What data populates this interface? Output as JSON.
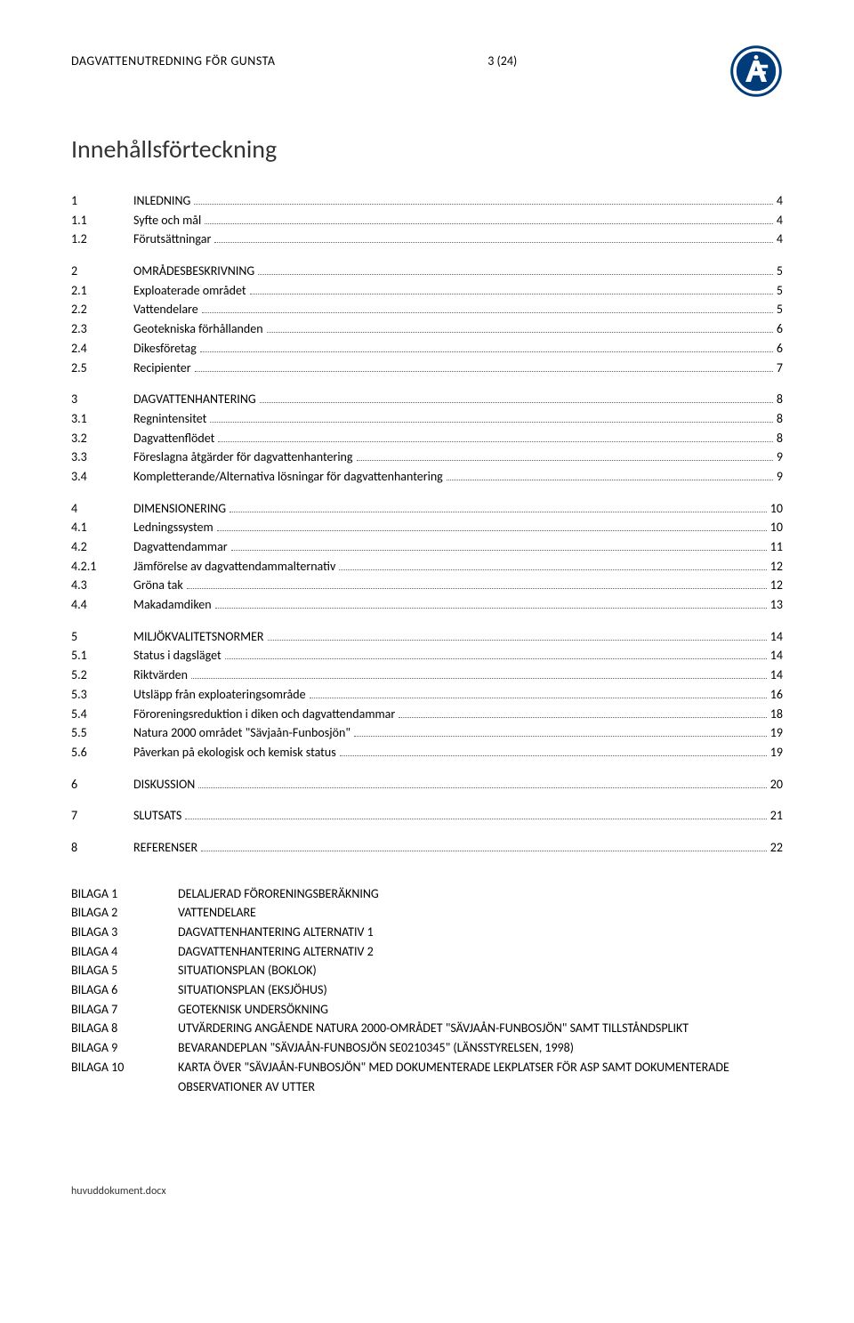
{
  "header": {
    "document_title": "DAGVATTENUTREDNING FÖR GUNSTA",
    "page_indicator": "3 (24)"
  },
  "title": "Innehållsförteckning",
  "toc_sections": [
    {
      "items": [
        {
          "num": "1",
          "label": "INLEDNING",
          "page": "4",
          "caps": true
        },
        {
          "num": "1.1",
          "label": "Syfte och mål",
          "page": "4"
        },
        {
          "num": "1.2",
          "label": "Förutsättningar",
          "page": "4"
        }
      ]
    },
    {
      "items": [
        {
          "num": "2",
          "label": "OMRÅDESBESKRIVNING",
          "page": "5",
          "caps": true
        },
        {
          "num": "2.1",
          "label": "Exploaterade området",
          "page": "5"
        },
        {
          "num": "2.2",
          "label": "Vattendelare",
          "page": "5"
        },
        {
          "num": "2.3",
          "label": "Geotekniska förhållanden",
          "page": "6"
        },
        {
          "num": "2.4",
          "label": "Dikesföretag",
          "page": "6"
        },
        {
          "num": "2.5",
          "label": "Recipienter",
          "page": "7"
        }
      ]
    },
    {
      "items": [
        {
          "num": "3",
          "label": "DAGVATTENHANTERING",
          "page": "8",
          "caps": true
        },
        {
          "num": "3.1",
          "label": "Regnintensitet",
          "page": "8"
        },
        {
          "num": "3.2",
          "label": "Dagvattenflödet",
          "page": "8"
        },
        {
          "num": "3.3",
          "label": "Föreslagna åtgärder för dagvattenhantering",
          "page": "9"
        },
        {
          "num": "3.4",
          "label": "Kompletterande/Alternativa lösningar för dagvattenhantering",
          "page": "9"
        }
      ]
    },
    {
      "items": [
        {
          "num": "4",
          "label": "DIMENSIONERING",
          "page": "10",
          "caps": true
        },
        {
          "num": "4.1",
          "label": "Ledningssystem",
          "page": "10"
        },
        {
          "num": "4.2",
          "label": "Dagvattendammar",
          "page": "11"
        },
        {
          "num": "4.2.1",
          "label": "Jämförelse av dagvattendammalternativ",
          "page": "12"
        },
        {
          "num": "4.3",
          "label": "Gröna tak",
          "page": "12"
        },
        {
          "num": "4.4",
          "label": "Makadamdiken",
          "page": "13"
        }
      ]
    },
    {
      "items": [
        {
          "num": "5",
          "label": "MILJÖKVALITETSNORMER",
          "page": "14",
          "caps": true
        },
        {
          "num": "5.1",
          "label": "Status i dagsläget",
          "page": "14"
        },
        {
          "num": "5.2",
          "label": "Riktvärden",
          "page": "14"
        },
        {
          "num": "5.3",
          "label": "Utsläpp från exploateringsområde",
          "page": "16"
        },
        {
          "num": "5.4",
          "label": "Föroreningsreduktion i diken och dagvattendammar",
          "page": "18"
        },
        {
          "num": "5.5",
          "label": "Natura 2000 området \"Sävjaån-Funbosjön\"",
          "page": "19"
        },
        {
          "num": "5.6",
          "label": "Påverkan på ekologisk och kemisk status",
          "page": "19"
        }
      ]
    },
    {
      "items": [
        {
          "num": "6",
          "label": "DISKUSSION",
          "page": "20",
          "caps": true
        }
      ]
    },
    {
      "items": [
        {
          "num": "7",
          "label": "SLUTSATS",
          "page": "21",
          "caps": true
        }
      ]
    },
    {
      "items": [
        {
          "num": "8",
          "label": "REFERENSER",
          "page": "22",
          "caps": true
        }
      ]
    }
  ],
  "appendices": [
    {
      "key": "BILAGA 1",
      "val": "DELALJERAD FÖRORENINGSBERÄKNING"
    },
    {
      "key": "BILAGA 2",
      "val": "VATTENDELARE"
    },
    {
      "key": "BILAGA 3",
      "val": "DAGVATTENHANTERING ALTERNATIV 1"
    },
    {
      "key": "BILAGA 4",
      "val": "DAGVATTENHANTERING ALTERNATIV 2"
    },
    {
      "key": "BILAGA 5",
      "val": "SITUATIONSPLAN (BOKLOK)"
    },
    {
      "key": "BILAGA 6",
      "val": "SITUATIONSPLAN (EKSJÖHUS)"
    },
    {
      "key": "BILAGA 7",
      "val": "GEOTEKNISK UNDERSÖKNING"
    },
    {
      "key": "BILAGA 8",
      "val": "UTVÄRDERING ANGÅENDE NATURA 2000-OMRÅDET \"SÄVJAÅN-FUNBOSJÖN\" SAMT TILLSTÅNDSPLIKT"
    },
    {
      "key": "BILAGA 9",
      "val": "BEVARANDEPLAN \"SÄVJAÅN-FUNBOSJÖN SE0210345\" (LÄNSSTYRELSEN, 1998)"
    },
    {
      "key": "BILAGA 10",
      "val": "KARTA ÖVER \"SÄVJAÅN-FUNBOSJÖN\" MED DOKUMENTERADE LEKPLATSER FÖR ASP SAMT DOKUMENTERADE OBSERVATIONER AV UTTER"
    }
  ],
  "footer": {
    "filename": "huvuddokument.docx"
  },
  "logo": {
    "outer_color": "#003b7a",
    "ring_color": "#ffffff",
    "letter_color": "#ffffff"
  }
}
